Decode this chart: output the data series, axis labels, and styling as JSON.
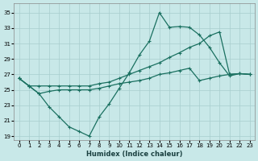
{
  "xlabel": "Humidex (Indice chaleur)",
  "bg_color": "#c8e8e8",
  "grid_color": "#a8cece",
  "line_color": "#1a7060",
  "xlim": [
    -0.5,
    23.5
  ],
  "ylim": [
    18.5,
    36.2
  ],
  "xticks": [
    0,
    1,
    2,
    3,
    4,
    5,
    6,
    7,
    8,
    9,
    10,
    11,
    12,
    13,
    14,
    15,
    16,
    17,
    18,
    19,
    20,
    21,
    22,
    23
  ],
  "yticks": [
    19,
    21,
    23,
    25,
    27,
    29,
    31,
    33,
    35
  ],
  "series1_x": [
    0,
    1,
    2,
    3,
    4,
    5,
    6,
    7,
    8,
    9,
    10,
    11,
    12,
    13,
    14,
    15,
    16,
    17,
    18,
    19,
    20,
    21,
    22,
    23
  ],
  "series1_y": [
    26.5,
    25.5,
    24.5,
    22.8,
    21.5,
    20.2,
    19.6,
    19.0,
    21.5,
    23.2,
    25.2,
    27.2,
    29.5,
    31.3,
    35.0,
    33.1,
    33.2,
    33.1,
    32.1,
    30.5,
    28.5,
    26.8,
    27.1,
    27.0
  ],
  "series2_x": [
    0,
    1,
    2,
    3,
    4,
    5,
    6,
    7,
    8,
    9,
    10,
    11,
    12,
    13,
    14,
    15,
    16,
    17,
    18,
    19,
    20,
    21,
    22,
    23
  ],
  "series2_y": [
    26.5,
    25.5,
    25.5,
    25.5,
    25.5,
    25.5,
    25.5,
    25.5,
    25.8,
    26.0,
    26.5,
    27.0,
    27.5,
    28.0,
    28.5,
    29.2,
    29.8,
    30.5,
    31.0,
    32.0,
    32.5,
    27.0,
    27.1,
    27.0
  ],
  "series3_x": [
    0,
    1,
    2,
    3,
    4,
    5,
    6,
    7,
    8,
    9,
    10,
    11,
    12,
    13,
    14,
    15,
    16,
    17,
    18,
    19,
    20,
    21,
    22,
    23
  ],
  "series3_y": [
    26.5,
    25.5,
    24.5,
    24.8,
    25.0,
    25.0,
    25.0,
    25.0,
    25.2,
    25.5,
    25.8,
    26.0,
    26.2,
    26.5,
    27.0,
    27.2,
    27.5,
    27.8,
    26.2,
    26.5,
    26.8,
    27.0,
    27.1,
    27.0
  ]
}
